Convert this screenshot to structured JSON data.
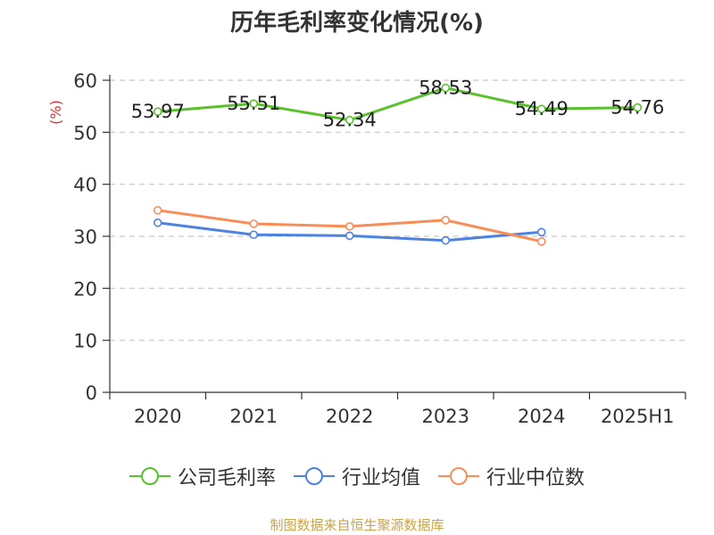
{
  "chart_data": {
    "type": "line",
    "title": "历年毛利率变化情况(%)",
    "ylabel": "(%)",
    "xlabel": "",
    "categories": [
      "2020",
      "2021",
      "2022",
      "2023",
      "2024",
      "2025H1"
    ],
    "ylim": [
      0,
      60
    ],
    "yticks": [
      0,
      10,
      20,
      30,
      40,
      50,
      60
    ],
    "grid": true,
    "legend_position": "bottom",
    "series": [
      {
        "name": "公司毛利率",
        "color": "#5ac12d",
        "values": [
          53.97,
          55.51,
          52.34,
          58.53,
          54.49,
          54.76
        ],
        "show_labels": true
      },
      {
        "name": "行业均值",
        "color": "#4d83df",
        "values": [
          32.6,
          30.3,
          30.1,
          29.2,
          30.8,
          null
        ],
        "show_labels": false
      },
      {
        "name": "行业中位数",
        "color": "#f78d57",
        "values": [
          35.0,
          32.4,
          31.9,
          33.1,
          29.0,
          null
        ],
        "show_labels": false
      }
    ]
  },
  "colors": {
    "ylabel": "#e03030",
    "axis": "#333333",
    "grid": "#c8c8c8",
    "source": "#c9a44a"
  },
  "source_note": "制图数据来自恒生聚源数据库"
}
